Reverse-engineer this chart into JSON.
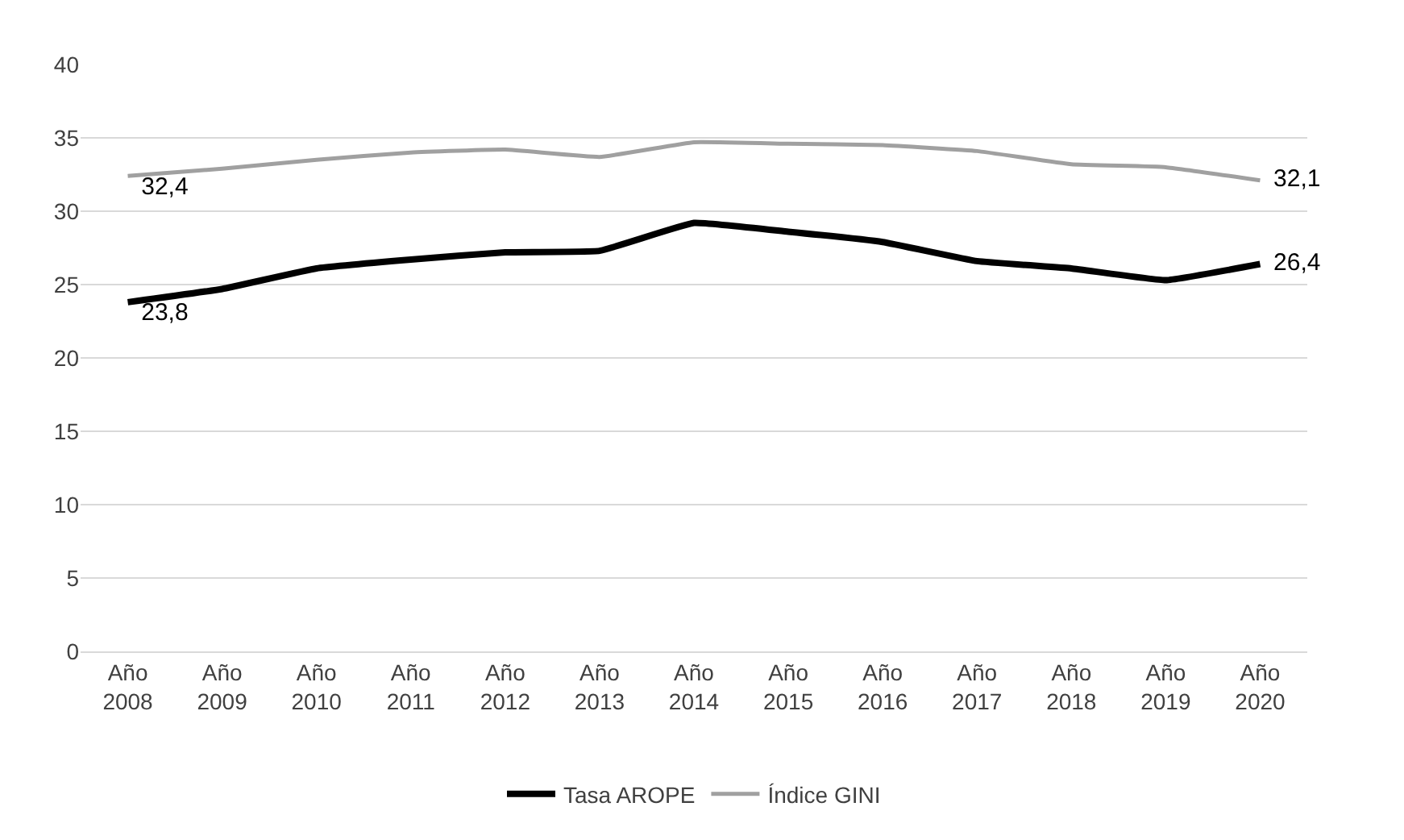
{
  "chart_data": {
    "type": "line",
    "categories": [
      "Año 2008",
      "Año 2009",
      "Año 2010",
      "Año 2011",
      "Año 2012",
      "Año 2013",
      "Año 2014",
      "Año 2015",
      "Año 2016",
      "Año 2017",
      "Año 2018",
      "Año 2019",
      "Año 2020"
    ],
    "series": [
      {
        "name": "Tasa AROPE",
        "color": "#000000",
        "values": [
          23.8,
          24.7,
          26.1,
          26.7,
          27.2,
          27.3,
          29.2,
          28.6,
          27.9,
          26.6,
          26.1,
          25.3,
          26.4
        ],
        "value_labels": [
          "23,8",
          null,
          null,
          null,
          null,
          null,
          null,
          null,
          null,
          null,
          null,
          null,
          "26,4"
        ]
      },
      {
        "name": "Índice GINI",
        "color": "#a0a0a0",
        "values": [
          32.4,
          32.9,
          33.5,
          34.0,
          34.2,
          33.7,
          34.7,
          34.6,
          34.5,
          34.1,
          33.2,
          33.0,
          32.1
        ],
        "value_labels": [
          "32,4",
          null,
          null,
          null,
          null,
          null,
          null,
          null,
          null,
          null,
          null,
          null,
          "32,1"
        ]
      }
    ],
    "ylim": [
      0,
      40
    ],
    "yticks": [
      0,
      5,
      10,
      15,
      20,
      25,
      30,
      35,
      40
    ],
    "grid": "y",
    "legend": "bottom",
    "marker": "none",
    "line_style": "solid"
  }
}
